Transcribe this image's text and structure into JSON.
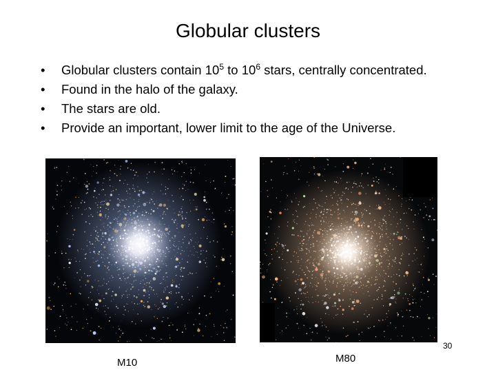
{
  "slide": {
    "title": "Globular clusters",
    "bullet_marker": "•",
    "bullets": [
      {
        "parts": [
          "Globular clusters contain 10",
          "5",
          " to 10",
          "6",
          " stars, centrally concentrated."
        ]
      },
      {
        "text": "Found in the halo of the galaxy."
      },
      {
        "text": "The stars are old."
      },
      {
        "text": "Provide an important, lower limit to the age of the Universe."
      }
    ],
    "images": [
      {
        "caption": "M10",
        "icon": "globular-cluster-m10-photo",
        "core_color": "#f2f2ff",
        "halo_color": "#8fa6d8",
        "background": "#05060a"
      },
      {
        "caption": "M80",
        "icon": "globular-cluster-m80-photo",
        "core_color": "#fff2e6",
        "halo_color": "#d5ad8a",
        "background": "#07080a"
      }
    ],
    "slide_number": "30"
  }
}
